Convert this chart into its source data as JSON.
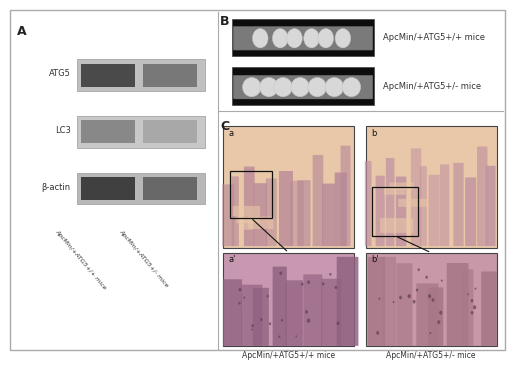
{
  "panel_A_label": "A",
  "panel_B_label": "B",
  "panel_C_label": "C",
  "wb_labels": [
    "ATG5",
    "LC3",
    "β-actin"
  ],
  "wb_x_labels": [
    "ApcMin/+ATG5+/+ mice",
    "ApcMin/+ATG5+/- mice"
  ],
  "background_color": "#ffffff",
  "wb_bg": "#c8c8c8",
  "wb_band_dark": "#484848",
  "wb_band_mid": "#888888",
  "wb_band_light": "#b0b0b0",
  "gut_bg": "#111111",
  "gut_tube_color": "#909090",
  "gut_bump_color": "#e0e0e0",
  "gut_label1": "ApcMin/+ATG5+/+ mice",
  "gut_label2": "ApcMin/+ATG5+/- mice",
  "histo_bottom_label1": "ApcMin/+ATG5+/+ mice",
  "histo_bottom_label2": "ApcMin/+ATG5+/- mice",
  "histo_bg_a": "#e8c8a8",
  "histo_bg_b": "#e8c8a8",
  "histo_tissue_purple": "#b080a0",
  "histo_tissue_dark": "#906080",
  "histo_zoom_bg_a": "#d0a0b8",
  "histo_zoom_bg_b": "#d0a8b0",
  "border_color": "#555555",
  "line_color": "#111111",
  "text_color": "#333333",
  "font_size_label": 9,
  "font_size_wb": 6,
  "font_size_gut": 6,
  "font_size_histo": 5.5,
  "font_size_panel_letter": 5.5
}
